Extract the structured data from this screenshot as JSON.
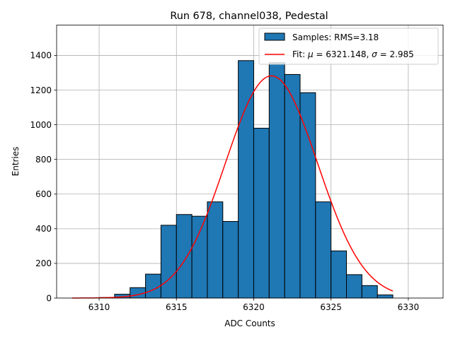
{
  "chart_data": {
    "type": "bar",
    "title": "Run 678, channel038, Pedestal",
    "xlabel": "ADC Counts",
    "ylabel": "Entries",
    "xlim": [
      6307.25,
      6332.25
    ],
    "ylim": [
      0,
      1575
    ],
    "grid": true,
    "legend_position": "top-right",
    "bar_color": "#1f77b4",
    "fit_color": "#ff0000",
    "xticks": [
      6310,
      6315,
      6320,
      6325,
      6330
    ],
    "yticks": [
      0,
      200,
      400,
      600,
      800,
      1000,
      1200,
      1400
    ],
    "bin_width": 1,
    "bins": [
      {
        "x": 6309.5,
        "count": 0
      },
      {
        "x": 6310.5,
        "count": 3
      },
      {
        "x": 6311.5,
        "count": 22
      },
      {
        "x": 6312.5,
        "count": 60
      },
      {
        "x": 6313.5,
        "count": 138
      },
      {
        "x": 6314.5,
        "count": 420
      },
      {
        "x": 6315.5,
        "count": 482
      },
      {
        "x": 6316.5,
        "count": 472
      },
      {
        "x": 6317.5,
        "count": 555
      },
      {
        "x": 6318.5,
        "count": 442
      },
      {
        "x": 6319.5,
        "count": 1370
      },
      {
        "x": 6320.5,
        "count": 980
      },
      {
        "x": 6321.5,
        "count": 1358
      },
      {
        "x": 6322.5,
        "count": 1290
      },
      {
        "x": 6323.5,
        "count": 1185
      },
      {
        "x": 6324.5,
        "count": 555
      },
      {
        "x": 6325.5,
        "count": 272
      },
      {
        "x": 6326.5,
        "count": 135
      },
      {
        "x": 6327.5,
        "count": 72
      },
      {
        "x": 6328.5,
        "count": 18
      }
    ],
    "fit": {
      "amplitude": 1282,
      "mu": 6321.148,
      "sigma": 2.985,
      "x_range": [
        6308.25,
        6329
      ]
    },
    "legend": {
      "samples_label": "Samples: RMS=3.18",
      "fit_label_prefix": "Fit: ",
      "mu_symbol": "μ",
      "mu_text": " = 6321.148, ",
      "sigma_symbol": "σ",
      "sigma_text": " = 2.985"
    }
  }
}
